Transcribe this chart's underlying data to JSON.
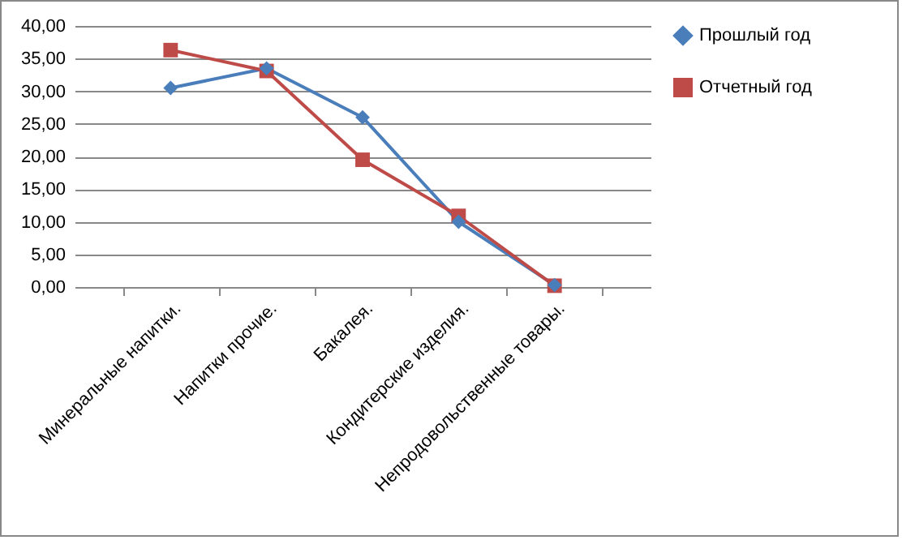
{
  "chart_data": {
    "type": "line",
    "categories": [
      "Минеральные напитки.",
      "Напитки прочие.",
      "Бакалея.",
      "Кондитерские изделия.",
      "Непродовольственные товары."
    ],
    "series": [
      {
        "name": "Прошлый год",
        "color": "#4a7ebb",
        "marker": "diamond",
        "values": [
          30.5,
          33.5,
          26.0,
          10.0,
          0.3
        ]
      },
      {
        "name": "Отчетный год",
        "color": "#be4b48",
        "marker": "square",
        "values": [
          36.3,
          33.1,
          19.5,
          10.9,
          0.2
        ]
      }
    ],
    "ylim": [
      0,
      40
    ],
    "yticks": [
      {
        "value": 0,
        "label": "0,00"
      },
      {
        "value": 5,
        "label": "5,00"
      },
      {
        "value": 10,
        "label": "10,00"
      },
      {
        "value": 15,
        "label": "15,00"
      },
      {
        "value": 20,
        "label": "20,00"
      },
      {
        "value": 25,
        "label": "25,00"
      },
      {
        "value": 30,
        "label": "30,00"
      },
      {
        "value": 35,
        "label": "35,00"
      },
      {
        "value": 40,
        "label": "40,00"
      }
    ],
    "grid": "y",
    "legend": "right",
    "line_style": "solid"
  }
}
